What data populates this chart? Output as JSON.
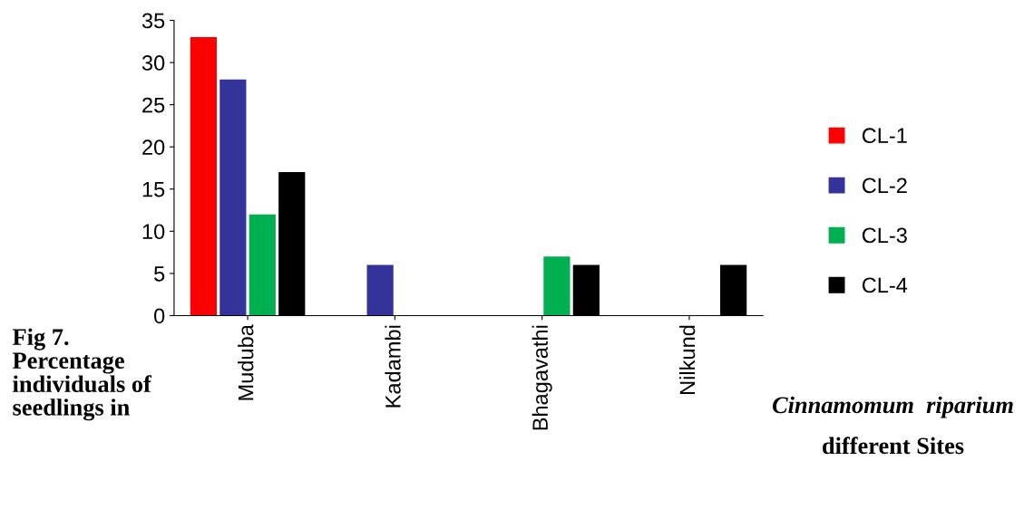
{
  "chart_data": {
    "type": "bar",
    "categories": [
      "Muduba",
      "Kadambi",
      "Bhagavathi",
      "Nilkund"
    ],
    "series": [
      {
        "name": "CL-1",
        "color": "#ff0000",
        "values": [
          33,
          0,
          0,
          0
        ]
      },
      {
        "name": "CL-2",
        "color": "#333399",
        "values": [
          28,
          6,
          0,
          0
        ]
      },
      {
        "name": "CL-3",
        "color": "#00b050",
        "values": [
          12,
          0,
          7,
          0
        ]
      },
      {
        "name": "CL-4",
        "color": "#000000",
        "values": [
          17,
          0,
          6,
          6
        ]
      }
    ],
    "ylim": [
      0,
      35
    ],
    "yticks": [
      0,
      5,
      10,
      15,
      20,
      25,
      30,
      35
    ],
    "grid": false,
    "legend": "right",
    "annotations": [
      "Fig 7.\nPercentage\nindividuals of\nseedlings in",
      "Cinnamomum  riparium",
      "different Sites"
    ]
  }
}
